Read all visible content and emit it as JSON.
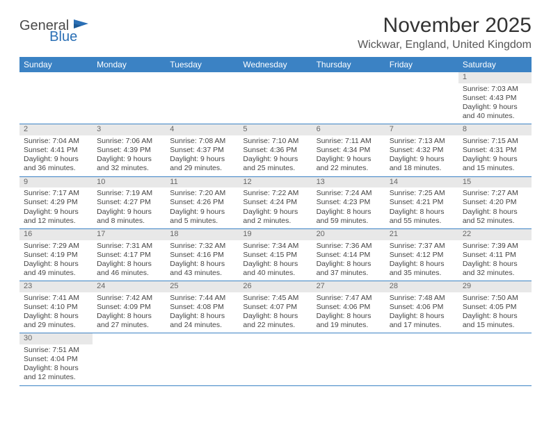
{
  "logo": {
    "general": "General",
    "blue": "Blue"
  },
  "header": {
    "month_title": "November 2025",
    "location": "Wickwar, England, United Kingdom"
  },
  "colors": {
    "header_bg": "#3b82c4",
    "header_text": "#ffffff",
    "daynum_bg": "#e8e8e8",
    "border": "#3b82c4",
    "logo_blue": "#2a6fb5"
  },
  "day_headers": [
    "Sunday",
    "Monday",
    "Tuesday",
    "Wednesday",
    "Thursday",
    "Friday",
    "Saturday"
  ],
  "weeks": [
    [
      null,
      null,
      null,
      null,
      null,
      null,
      {
        "n": "1",
        "sr": "Sunrise: 7:03 AM",
        "ss": "Sunset: 4:43 PM",
        "dl": "Daylight: 9 hours and 40 minutes."
      }
    ],
    [
      {
        "n": "2",
        "sr": "Sunrise: 7:04 AM",
        "ss": "Sunset: 4:41 PM",
        "dl": "Daylight: 9 hours and 36 minutes."
      },
      {
        "n": "3",
        "sr": "Sunrise: 7:06 AM",
        "ss": "Sunset: 4:39 PM",
        "dl": "Daylight: 9 hours and 32 minutes."
      },
      {
        "n": "4",
        "sr": "Sunrise: 7:08 AM",
        "ss": "Sunset: 4:37 PM",
        "dl": "Daylight: 9 hours and 29 minutes."
      },
      {
        "n": "5",
        "sr": "Sunrise: 7:10 AM",
        "ss": "Sunset: 4:36 PM",
        "dl": "Daylight: 9 hours and 25 minutes."
      },
      {
        "n": "6",
        "sr": "Sunrise: 7:11 AM",
        "ss": "Sunset: 4:34 PM",
        "dl": "Daylight: 9 hours and 22 minutes."
      },
      {
        "n": "7",
        "sr": "Sunrise: 7:13 AM",
        "ss": "Sunset: 4:32 PM",
        "dl": "Daylight: 9 hours and 18 minutes."
      },
      {
        "n": "8",
        "sr": "Sunrise: 7:15 AM",
        "ss": "Sunset: 4:31 PM",
        "dl": "Daylight: 9 hours and 15 minutes."
      }
    ],
    [
      {
        "n": "9",
        "sr": "Sunrise: 7:17 AM",
        "ss": "Sunset: 4:29 PM",
        "dl": "Daylight: 9 hours and 12 minutes."
      },
      {
        "n": "10",
        "sr": "Sunrise: 7:19 AM",
        "ss": "Sunset: 4:27 PM",
        "dl": "Daylight: 9 hours and 8 minutes."
      },
      {
        "n": "11",
        "sr": "Sunrise: 7:20 AM",
        "ss": "Sunset: 4:26 PM",
        "dl": "Daylight: 9 hours and 5 minutes."
      },
      {
        "n": "12",
        "sr": "Sunrise: 7:22 AM",
        "ss": "Sunset: 4:24 PM",
        "dl": "Daylight: 9 hours and 2 minutes."
      },
      {
        "n": "13",
        "sr": "Sunrise: 7:24 AM",
        "ss": "Sunset: 4:23 PM",
        "dl": "Daylight: 8 hours and 59 minutes."
      },
      {
        "n": "14",
        "sr": "Sunrise: 7:25 AM",
        "ss": "Sunset: 4:21 PM",
        "dl": "Daylight: 8 hours and 55 minutes."
      },
      {
        "n": "15",
        "sr": "Sunrise: 7:27 AM",
        "ss": "Sunset: 4:20 PM",
        "dl": "Daylight: 8 hours and 52 minutes."
      }
    ],
    [
      {
        "n": "16",
        "sr": "Sunrise: 7:29 AM",
        "ss": "Sunset: 4:19 PM",
        "dl": "Daylight: 8 hours and 49 minutes."
      },
      {
        "n": "17",
        "sr": "Sunrise: 7:31 AM",
        "ss": "Sunset: 4:17 PM",
        "dl": "Daylight: 8 hours and 46 minutes."
      },
      {
        "n": "18",
        "sr": "Sunrise: 7:32 AM",
        "ss": "Sunset: 4:16 PM",
        "dl": "Daylight: 8 hours and 43 minutes."
      },
      {
        "n": "19",
        "sr": "Sunrise: 7:34 AM",
        "ss": "Sunset: 4:15 PM",
        "dl": "Daylight: 8 hours and 40 minutes."
      },
      {
        "n": "20",
        "sr": "Sunrise: 7:36 AM",
        "ss": "Sunset: 4:14 PM",
        "dl": "Daylight: 8 hours and 37 minutes."
      },
      {
        "n": "21",
        "sr": "Sunrise: 7:37 AM",
        "ss": "Sunset: 4:12 PM",
        "dl": "Daylight: 8 hours and 35 minutes."
      },
      {
        "n": "22",
        "sr": "Sunrise: 7:39 AM",
        "ss": "Sunset: 4:11 PM",
        "dl": "Daylight: 8 hours and 32 minutes."
      }
    ],
    [
      {
        "n": "23",
        "sr": "Sunrise: 7:41 AM",
        "ss": "Sunset: 4:10 PM",
        "dl": "Daylight: 8 hours and 29 minutes."
      },
      {
        "n": "24",
        "sr": "Sunrise: 7:42 AM",
        "ss": "Sunset: 4:09 PM",
        "dl": "Daylight: 8 hours and 27 minutes."
      },
      {
        "n": "25",
        "sr": "Sunrise: 7:44 AM",
        "ss": "Sunset: 4:08 PM",
        "dl": "Daylight: 8 hours and 24 minutes."
      },
      {
        "n": "26",
        "sr": "Sunrise: 7:45 AM",
        "ss": "Sunset: 4:07 PM",
        "dl": "Daylight: 8 hours and 22 minutes."
      },
      {
        "n": "27",
        "sr": "Sunrise: 7:47 AM",
        "ss": "Sunset: 4:06 PM",
        "dl": "Daylight: 8 hours and 19 minutes."
      },
      {
        "n": "28",
        "sr": "Sunrise: 7:48 AM",
        "ss": "Sunset: 4:06 PM",
        "dl": "Daylight: 8 hours and 17 minutes."
      },
      {
        "n": "29",
        "sr": "Sunrise: 7:50 AM",
        "ss": "Sunset: 4:05 PM",
        "dl": "Daylight: 8 hours and 15 minutes."
      }
    ],
    [
      {
        "n": "30",
        "sr": "Sunrise: 7:51 AM",
        "ss": "Sunset: 4:04 PM",
        "dl": "Daylight: 8 hours and 12 minutes."
      },
      null,
      null,
      null,
      null,
      null,
      null
    ]
  ]
}
